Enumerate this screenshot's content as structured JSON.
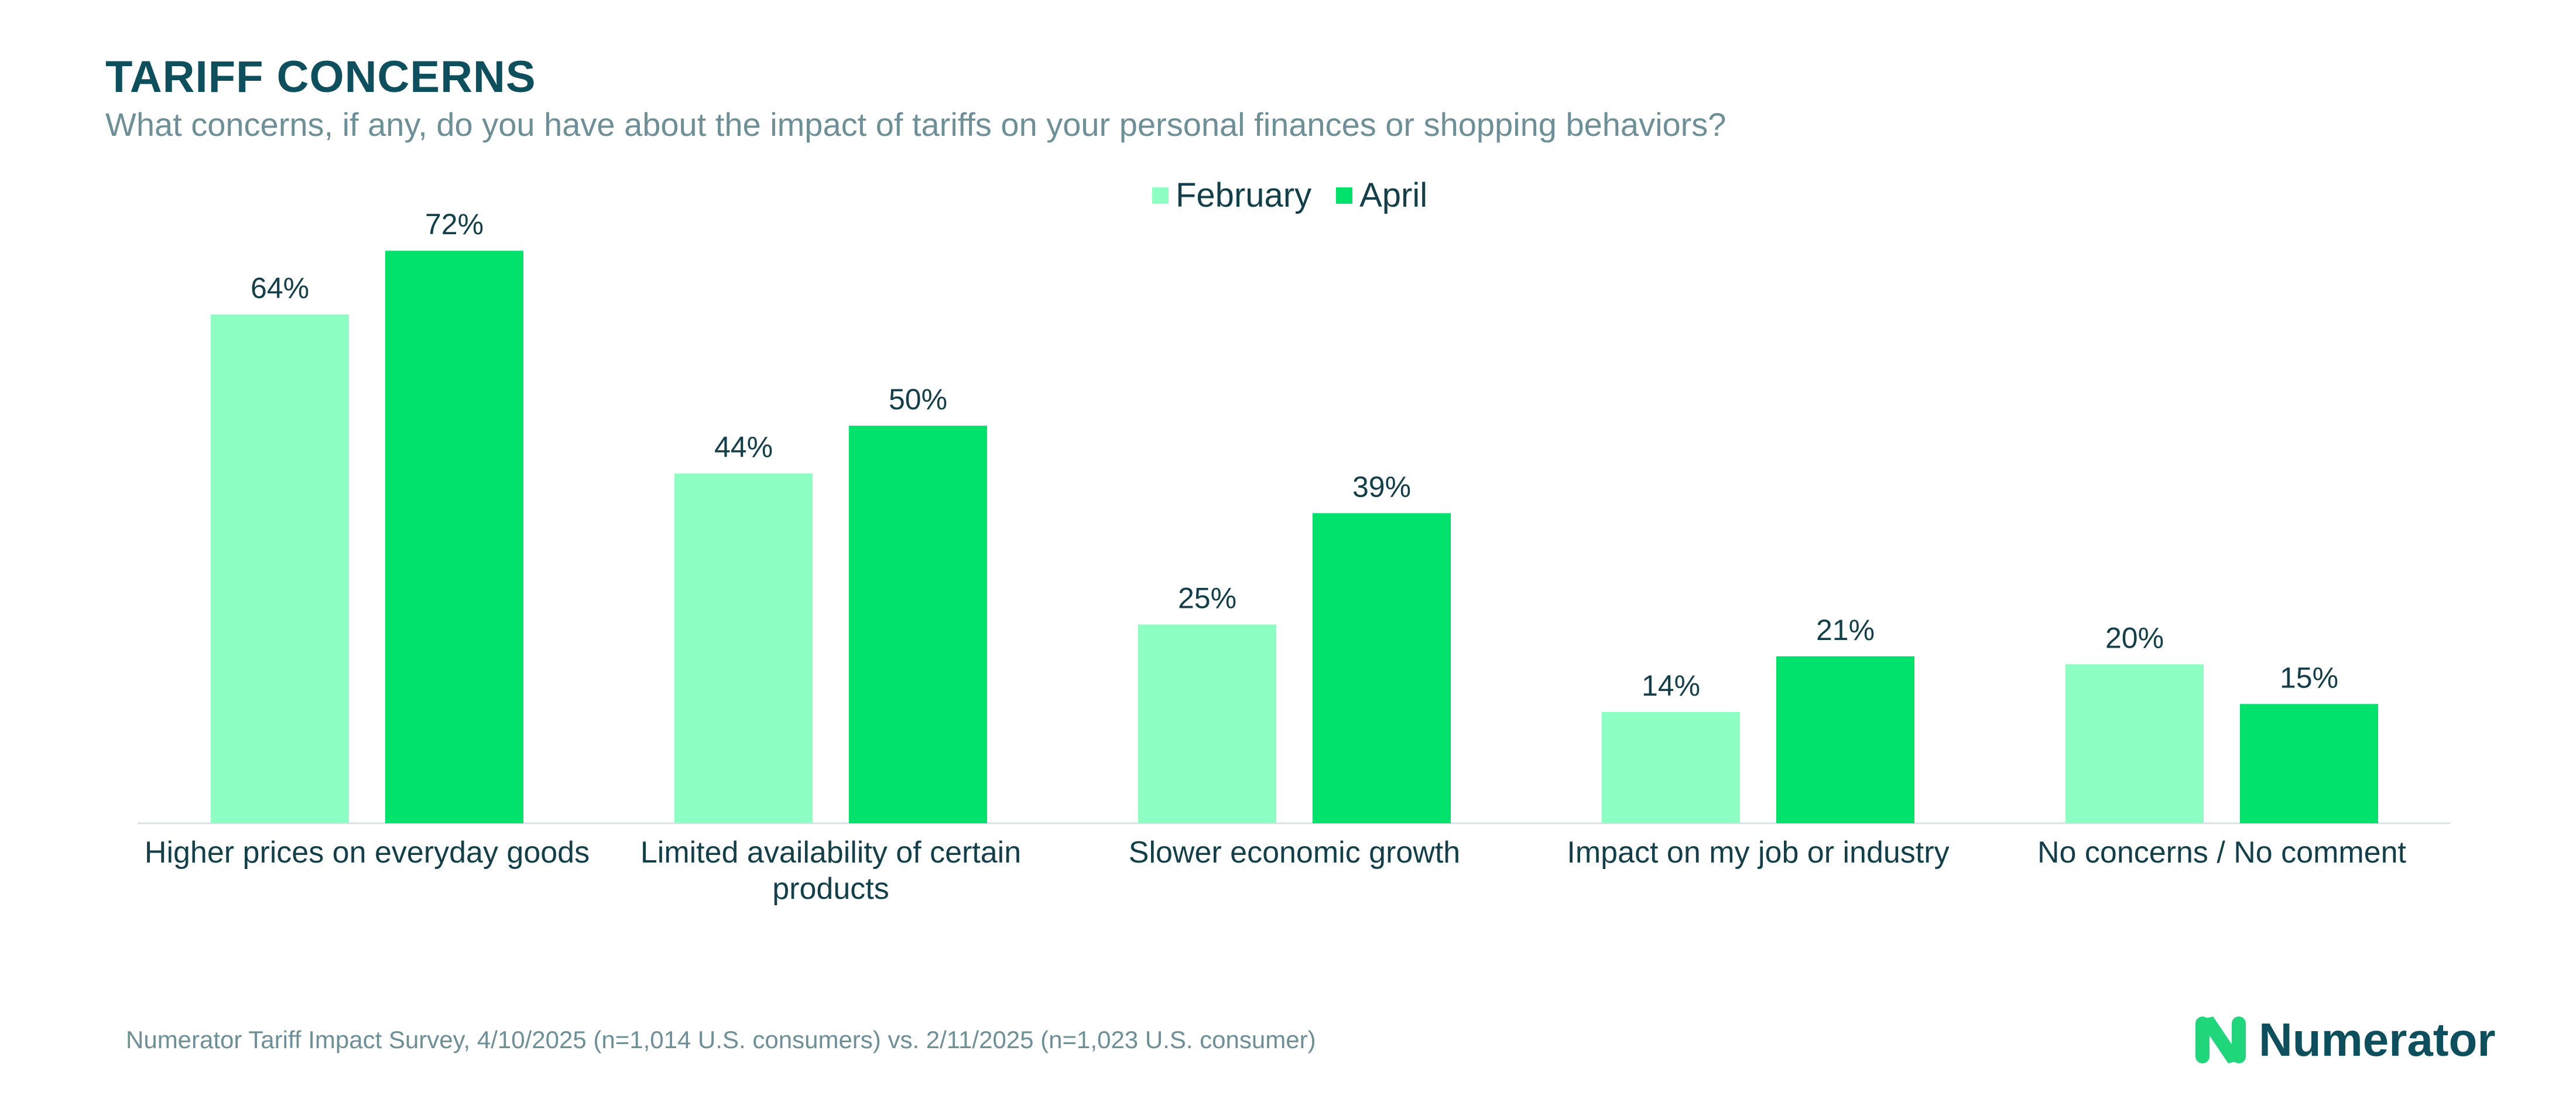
{
  "header": {
    "title": "TARIFF CONCERNS",
    "subtitle": "What concerns, if any, do you have about the impact of tariffs on your personal finances or shopping behaviors?"
  },
  "colors": {
    "february": "#8effc2",
    "april": "#00e26b",
    "title": "#0d4f5c",
    "subtitle": "#6d8f98",
    "axis": "#d9e2e4",
    "logo_mark": "#1fd67a"
  },
  "chart_data": {
    "type": "bar",
    "title": "",
    "xlabel": "",
    "ylabel": "",
    "ylim": [
      0,
      80
    ],
    "grid": false,
    "legend_position": "top-center",
    "categories": [
      "Higher prices on everyday goods",
      "Limited availability of certain products",
      "Slower economic growth",
      "Impact on my job or industry",
      "No concerns / No comment"
    ],
    "series": [
      {
        "name": "February",
        "values": [
          64,
          44,
          25,
          14,
          20
        ],
        "labels": [
          "64%",
          "44%",
          "25%",
          "14%",
          "20%"
        ]
      },
      {
        "name": "April",
        "values": [
          72,
          50,
          39,
          21,
          15
        ],
        "labels": [
          "72%",
          "50%",
          "39%",
          "21%",
          "15%"
        ]
      }
    ]
  },
  "footnote": "Numerator Tariff Impact Survey, 4/10/2025 (n=1,014 U.S. consumers) vs. 2/11/2025 (n=1,023 U.S. consumer)",
  "logo": {
    "text": "Numerator",
    "icon": "numerator-n-logo-icon"
  }
}
